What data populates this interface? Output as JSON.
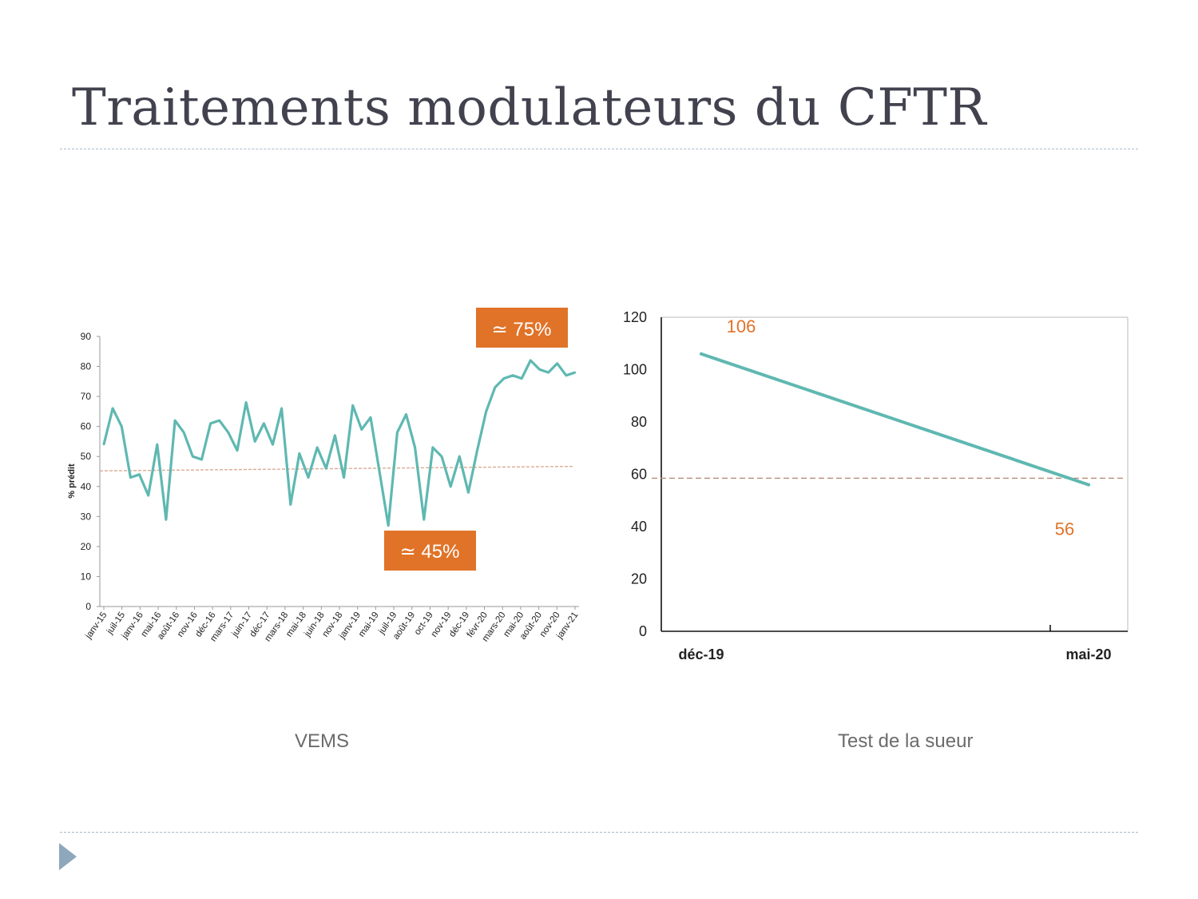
{
  "slide": {
    "title": "Traitements modulateurs du CFTR",
    "caption_left": "VEMS",
    "caption_right": "Test de la sueur"
  },
  "chart_data": [
    {
      "type": "line",
      "title": "",
      "xlabel": "",
      "ylabel": "% prédit",
      "ylim": [
        0,
        90
      ],
      "yticks": [
        "0",
        "10",
        "20",
        "30",
        "40",
        "50",
        "60",
        "70",
        "80",
        "90"
      ],
      "tick_labels": [
        "janv-15",
        "juil-15",
        "janv-16",
        "mai-16",
        "août-16",
        "nov-16",
        "déc-16",
        "mars-17",
        "juin-17",
        "déc-17",
        "mars-18",
        "mai-18",
        "juin-18",
        "nov-18",
        "janv-19",
        "mai-19",
        "juil-19",
        "août-19",
        "oct-19",
        "nov-19",
        "déc-19",
        "févr-20",
        "mars-20",
        "mai-20",
        "août-20",
        "nov-20",
        "janv-21"
      ],
      "series": [
        {
          "name": "VEMS",
          "color": "#5fb8b1",
          "values": [
            54,
            66,
            60,
            43,
            44,
            37,
            54,
            29,
            62,
            58,
            50,
            49,
            61,
            62,
            58,
            52,
            68,
            55,
            61,
            54,
            66,
            34,
            51,
            43,
            53,
            46,
            57,
            43,
            67,
            59,
            63,
            45,
            27,
            58,
            64,
            53,
            29,
            53,
            50,
            40,
            50,
            38,
            52,
            65,
            73,
            76,
            77,
            76,
            82,
            79,
            78,
            81,
            77,
            78
          ]
        }
      ],
      "trend": {
        "color": "#d9a58c",
        "from": 45.2,
        "to": 46.7
      },
      "annotations": [
        {
          "label": "≃ 75%",
          "color": "#e07328"
        },
        {
          "label": "≃ 45%",
          "color": "#e07328"
        }
      ]
    },
    {
      "type": "line",
      "title": "",
      "xlabel": "",
      "ylabel": "",
      "ylim": [
        0,
        120
      ],
      "yticks": [
        "0",
        "20",
        "40",
        "60",
        "80",
        "100",
        "120"
      ],
      "categories": [
        "déc-19",
        "mai-20"
      ],
      "series": [
        {
          "name": "Test de la sueur",
          "color": "#5fb8b1",
          "values": [
            106,
            56
          ]
        }
      ],
      "threshold": {
        "value": 58.5,
        "color": "#b78a7a"
      },
      "data_labels": [
        "106",
        "56"
      ],
      "label_color": "#e07328"
    }
  ]
}
